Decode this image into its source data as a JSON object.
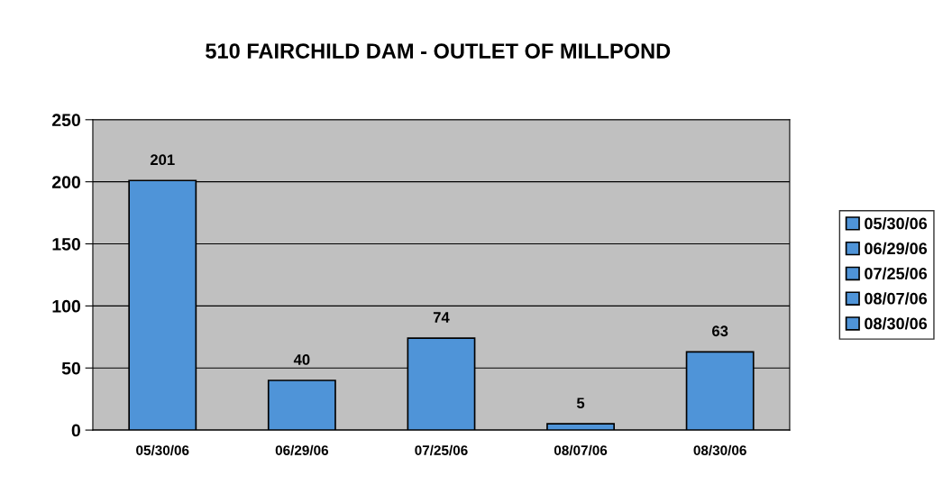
{
  "chart_data": {
    "type": "bar",
    "title": "510 FAIRCHILD DAM - OUTLET OF MILLPOND",
    "categories": [
      "05/30/06",
      "06/29/06",
      "07/25/06",
      "08/07/06",
      "08/30/06"
    ],
    "series": [
      {
        "name": "05/30/06",
        "color": "#4f94d8",
        "values": [
          201,
          null,
          null,
          null,
          null
        ]
      },
      {
        "name": "06/29/06",
        "color": "#4f94d8",
        "values": [
          null,
          40,
          null,
          null,
          null
        ]
      },
      {
        "name": "07/25/06",
        "color": "#4f94d8",
        "values": [
          null,
          null,
          74,
          null,
          null
        ]
      },
      {
        "name": "08/07/06",
        "color": "#4f94d8",
        "values": [
          null,
          null,
          null,
          5,
          null
        ]
      },
      {
        "name": "08/30/06",
        "color": "#4f94d8",
        "values": [
          null,
          null,
          null,
          null,
          63
        ]
      }
    ],
    "ylim": [
      0,
      250
    ],
    "yticks": [
      0,
      50,
      100,
      150,
      200,
      250
    ],
    "grid": "y",
    "legend": "right",
    "data_labels": true
  }
}
